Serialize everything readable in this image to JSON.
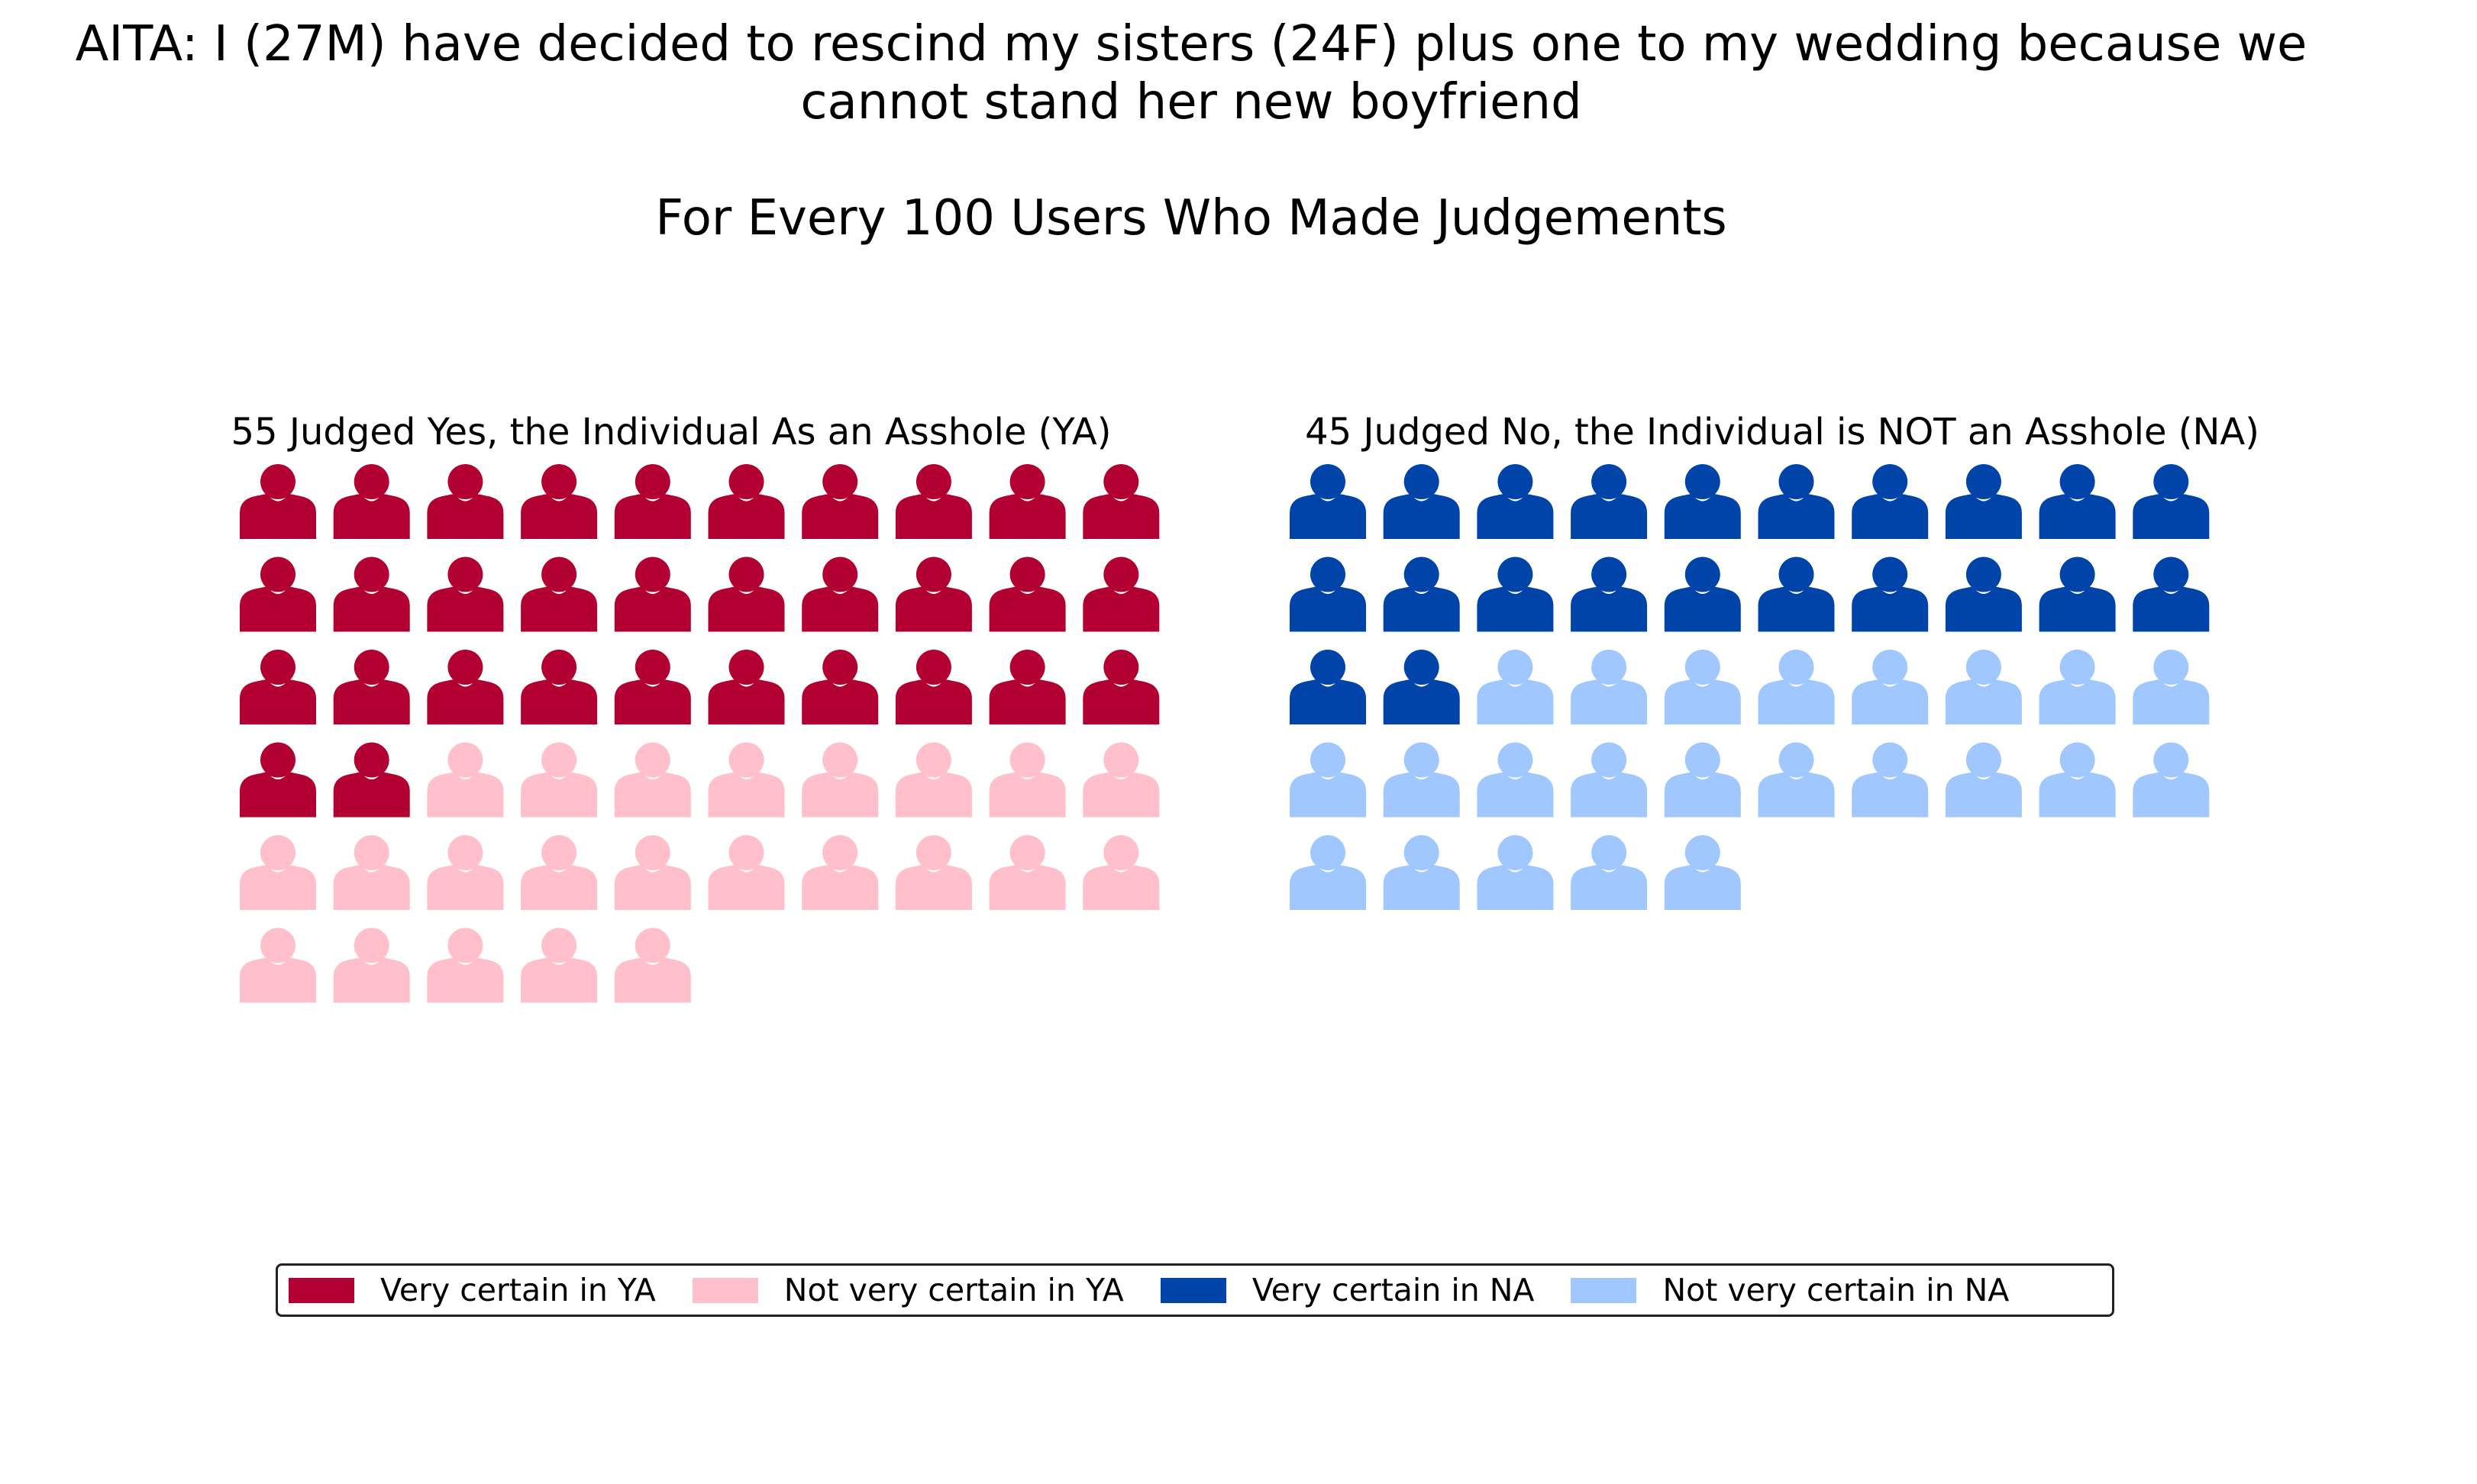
{
  "title_lines": [
    "AITA: I (27M) have decided to rescind my sisters (24F) plus one to my wedding because we",
    "cannot stand her new boyfriend"
  ],
  "subtitle": "For Every 100 Users Who Made Judgements",
  "icon": "person-icon",
  "chart_data": [
    {
      "type": "waffle",
      "title": "55 Judged Yes, the Individual As an Asshole (YA)",
      "columns": 10,
      "total": 55,
      "series": [
        {
          "name": "Very certain in YA",
          "value": 32,
          "color": "#b30033"
        },
        {
          "name": "Not very certain in YA",
          "value": 23,
          "color": "#ffc0cb"
        }
      ]
    },
    {
      "type": "waffle",
      "title": "45 Judged No, the Individual is NOT an Asshole (NA)",
      "columns": 10,
      "total": 45,
      "series": [
        {
          "name": "Very certain in NA",
          "value": 22,
          "color": "#0044aa"
        },
        {
          "name": "Not very certain in NA",
          "value": 23,
          "color": "#a0c8ff"
        }
      ]
    }
  ],
  "legend": [
    {
      "label": "Very certain in YA",
      "color": "#b30033"
    },
    {
      "label": "Not very certain in YA",
      "color": "#ffc0cb"
    },
    {
      "label": "Very certain in NA",
      "color": "#0044aa"
    },
    {
      "label": "Not very certain in NA",
      "color": "#a0c8ff"
    }
  ]
}
